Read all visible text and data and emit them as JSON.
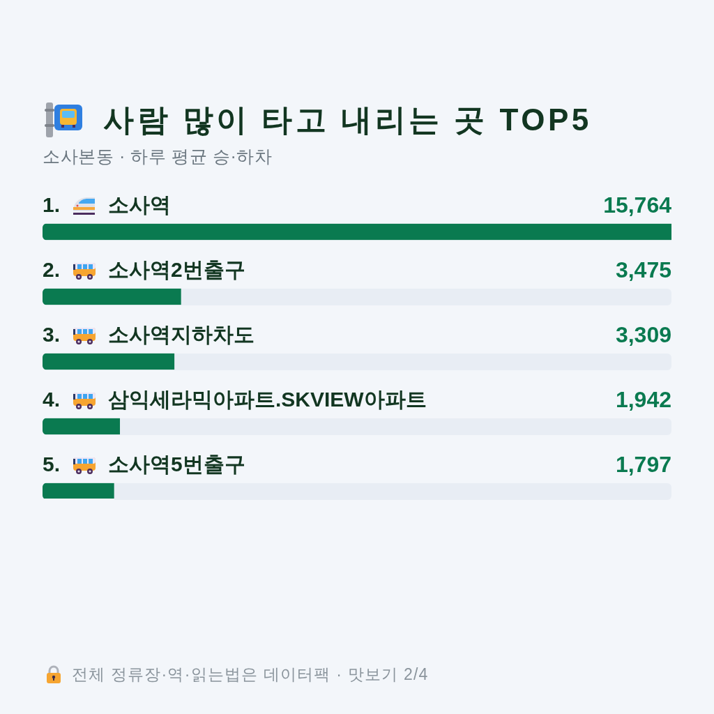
{
  "chart_data": {
    "type": "bar",
    "orientation": "horizontal",
    "title": "사람 많이 타고 내리는 곳 TOP5",
    "subtitle": "소사본동 · 하루 평균 승·하차",
    "categories": [
      "소사역",
      "소사역2번출구",
      "소사역지하차도",
      "삼익세라믹아파트.SKVIEW아파트",
      "소사역5번출구"
    ],
    "values": [
      15764,
      3475,
      3309,
      1942,
      1797
    ],
    "value_labels": [
      "15,764",
      "3,475",
      "3,309",
      "1,942",
      "1,797"
    ],
    "color": "#0a7a50",
    "tick_labels": "y",
    "annotations": [
      "1.",
      "2.",
      "3.",
      "4.",
      "5.",
      "전체 정류장·역·읽는법은 데이터팩 · 맛보기 2/4"
    ]
  }
}
